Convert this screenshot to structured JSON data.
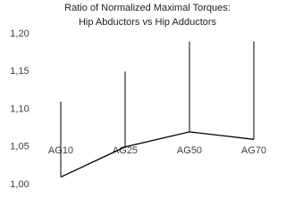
{
  "chart_data": {
    "type": "line",
    "title": "Ratio of Normalized Maximal Torques:",
    "subtitle": "Hip Abductors vs Hip Adductors",
    "categories": [
      "AG10",
      "AG25",
      "AG50",
      "AG70"
    ],
    "values": [
      1.01,
      1.05,
      1.07,
      1.06
    ],
    "errors": [
      0.1,
      0.1,
      0.12,
      0.13
    ],
    "color": "#000000",
    "ylim": [
      1.0,
      1.2
    ],
    "yticks": [
      {
        "value": 1.0,
        "label": "1,00"
      },
      {
        "value": 1.05,
        "label": "1,05"
      },
      {
        "value": 1.1,
        "label": "1,10"
      },
      {
        "value": 1.15,
        "label": "1,15"
      },
      {
        "value": 1.2,
        "label": "1,20"
      }
    ],
    "grid": false
  }
}
